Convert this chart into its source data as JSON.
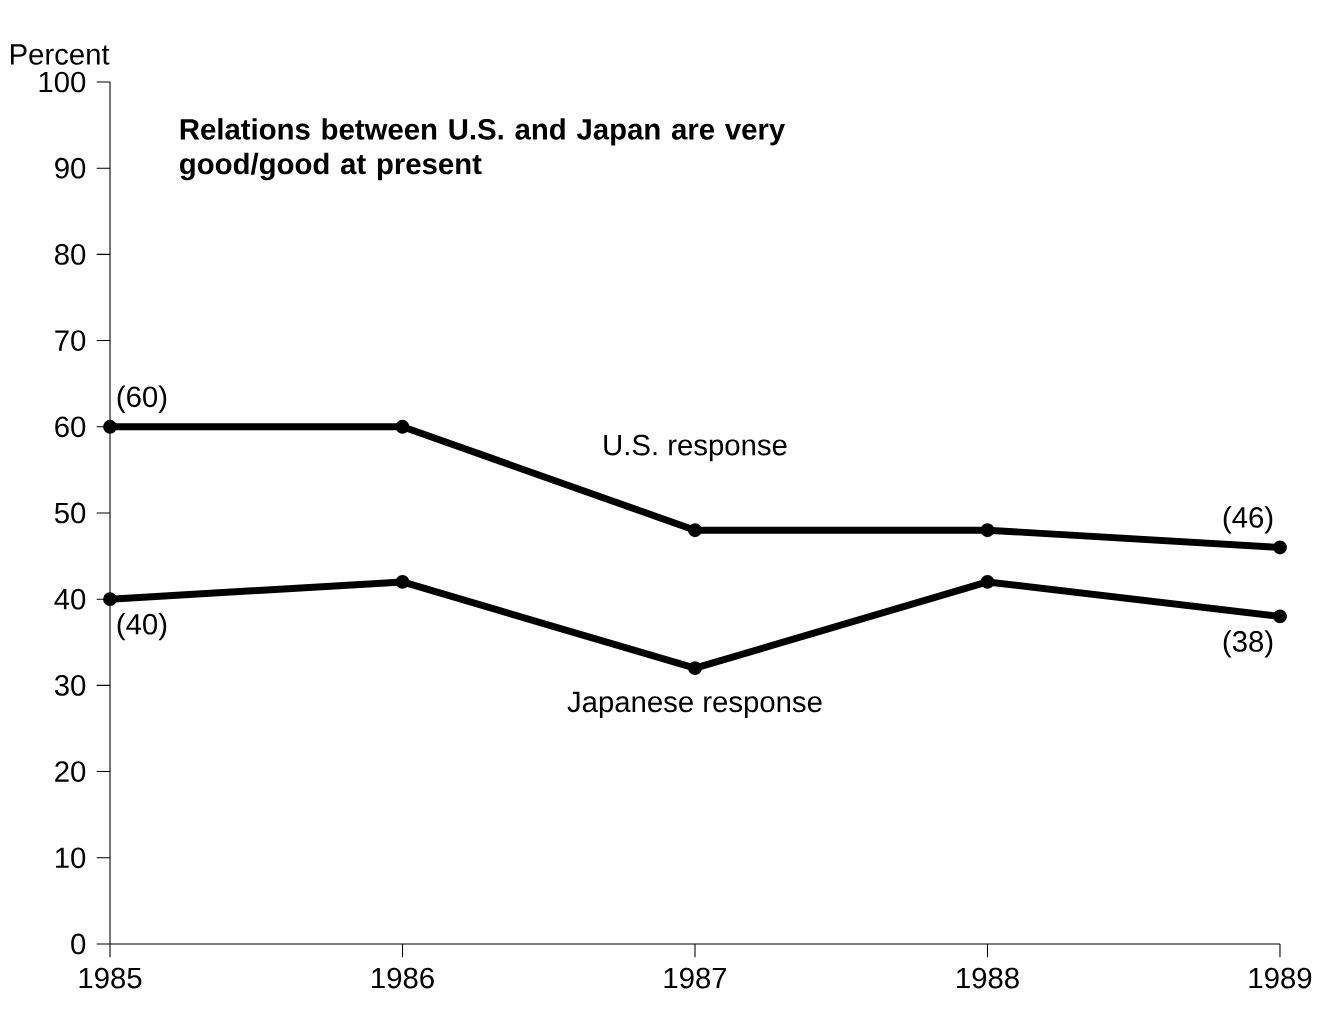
{
  "chart_data": {
    "type": "line",
    "title": "Relations between U.S. and Japan are very good/good at present",
    "ylabel": "Percent",
    "x": [
      1985,
      1986,
      1987,
      1988,
      1989
    ],
    "series": [
      {
        "name": "U.S. response",
        "color": "#000000",
        "values": [
          60,
          60,
          48,
          48,
          46
        ],
        "value_labels": [
          "(60)",
          null,
          null,
          null,
          "(46)"
        ]
      },
      {
        "name": "Japanese response",
        "color": "#000000",
        "values": [
          40,
          42,
          32,
          42,
          38
        ],
        "value_labels": [
          "(40)",
          null,
          null,
          null,
          "(38)"
        ]
      }
    ],
    "xlim": [
      1985,
      1989
    ],
    "xticks": [
      1985,
      1986,
      1987,
      1988,
      1989
    ],
    "ylim": [
      0,
      100
    ],
    "yticks": [
      0,
      10,
      20,
      30,
      40,
      50,
      60,
      70,
      80,
      90,
      100
    ],
    "grid": false,
    "marker": "circle",
    "line_style": "solid"
  }
}
